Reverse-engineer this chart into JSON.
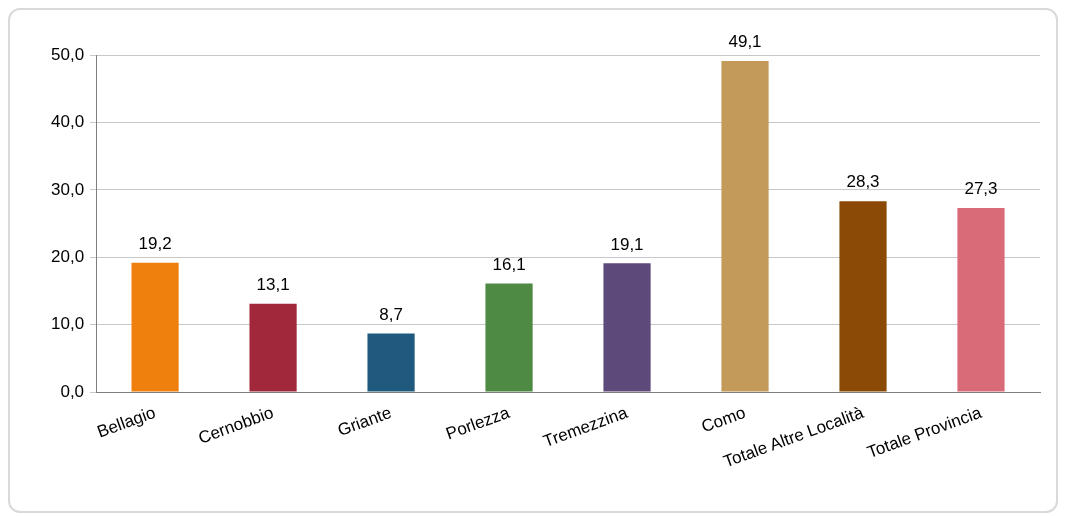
{
  "chart_data": {
    "type": "bar",
    "categories": [
      "Bellagio",
      "Cernobbio",
      "Griante",
      "Porlezza",
      "Tremezzina",
      "Como",
      "Totale Altre Località",
      "Totale Provincia"
    ],
    "values": [
      19.2,
      13.1,
      8.7,
      16.1,
      19.1,
      49.1,
      28.3,
      27.3
    ],
    "colors": [
      "#f0800e",
      "#a0283a",
      "#1f5a7e",
      "#4e8a44",
      "#5e4a7a",
      "#c49a5a",
      "#8b4a05",
      "#d96b78"
    ],
    "value_labels": [
      "19,2",
      "13,1",
      "8,7",
      "16,1",
      "19,1",
      "49,1",
      "28,3",
      "27,3"
    ],
    "ylim": [
      0,
      50
    ],
    "yticks": [
      {
        "value": 0,
        "label": "0,0"
      },
      {
        "value": 10,
        "label": "10,0"
      },
      {
        "value": 20,
        "label": "20,0"
      },
      {
        "value": 30,
        "label": "30,0"
      },
      {
        "value": 40,
        "label": "40,0"
      },
      {
        "value": 50,
        "label": "50,0"
      }
    ],
    "grid": "y",
    "legend": false
  }
}
